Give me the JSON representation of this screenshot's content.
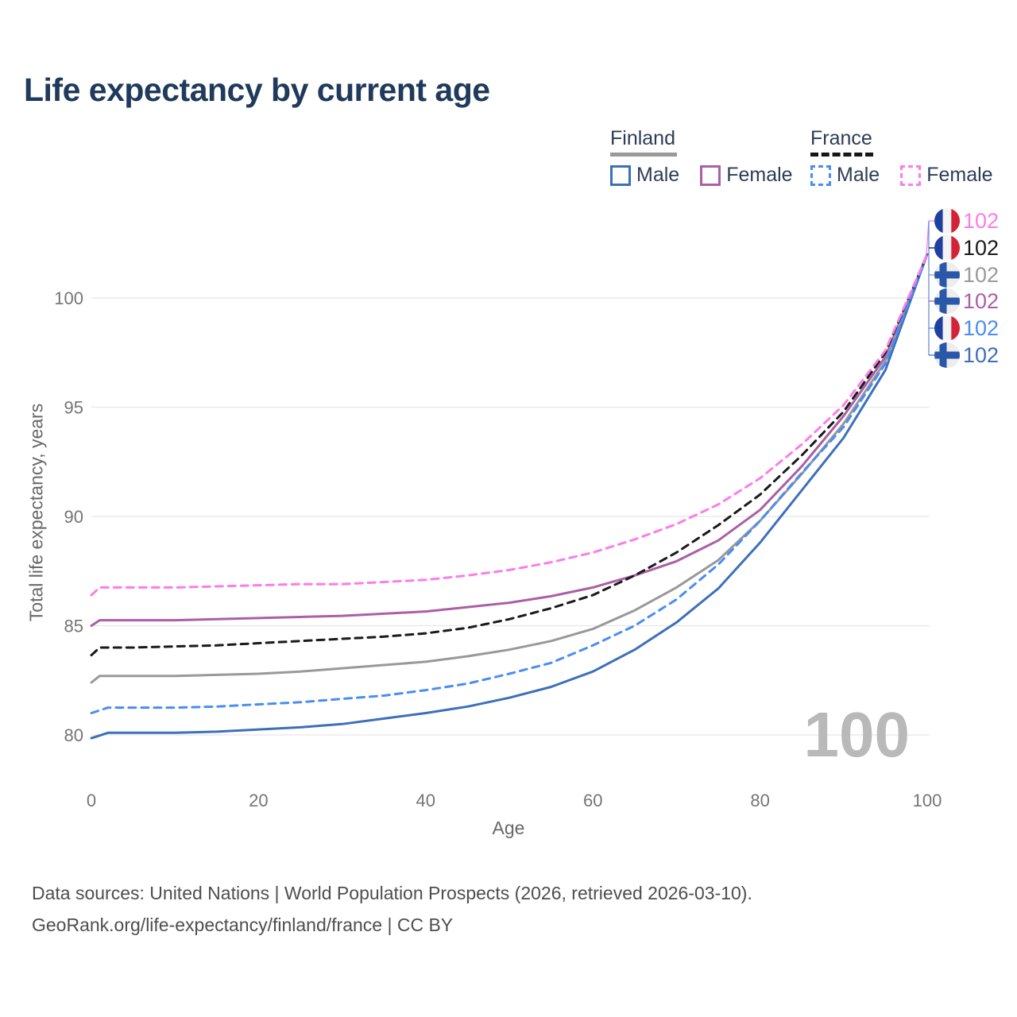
{
  "title": "Life expectancy by current age",
  "legend": {
    "groups": [
      {
        "label": "Finland",
        "line_style": "solid",
        "underline_color": "#999999",
        "items": [
          {
            "label": "Male",
            "color": "#3d6fba",
            "dash": false
          },
          {
            "label": "Female",
            "color": "#ab5fa5",
            "dash": false
          }
        ]
      },
      {
        "label": "France",
        "line_style": "dashed",
        "underline_color": "#161616",
        "items": [
          {
            "label": "Male",
            "color": "#4a8df2",
            "dash": true
          },
          {
            "label": "Female",
            "color": "#fb7de9",
            "dash": true
          }
        ]
      }
    ]
  },
  "chart_data": {
    "type": "line",
    "title": "Life expectancy by current age",
    "xlabel": "Age",
    "ylabel": "Total life expectancy, years",
    "xlim": [
      0,
      100
    ],
    "ylim": [
      79,
      103
    ],
    "xticks": [
      0,
      20,
      40,
      60,
      80,
      100
    ],
    "yticks": [
      80,
      85,
      90,
      95,
      100
    ],
    "grid": true,
    "legend_position": "top-right",
    "watermark_age_counter": "100",
    "colors": {
      "finland_male": "#3d6fba",
      "finland_female": "#ab5fa5",
      "finland_all": "#999999",
      "france_male": "#4a8df2",
      "france_female": "#fb7de9",
      "france_all": "#1a1a1a",
      "grid": "#eaeaea",
      "tick_text": "#757575",
      "watermark": "#b9b9b9"
    },
    "series": [
      {
        "name": "Finland Female",
        "country": "finland",
        "sex": "female",
        "color": "#ab5fa5",
        "dash": false,
        "points": [
          [
            0,
            85.0
          ],
          [
            1,
            85.25
          ],
          [
            5,
            85.25
          ],
          [
            10,
            85.25
          ],
          [
            15,
            85.3
          ],
          [
            20,
            85.35
          ],
          [
            25,
            85.4
          ],
          [
            30,
            85.45
          ],
          [
            35,
            85.55
          ],
          [
            40,
            85.65
          ],
          [
            45,
            85.85
          ],
          [
            50,
            86.05
          ],
          [
            55,
            86.35
          ],
          [
            60,
            86.75
          ],
          [
            65,
            87.3
          ],
          [
            70,
            87.95
          ],
          [
            75,
            88.9
          ],
          [
            80,
            90.3
          ],
          [
            85,
            92.3
          ],
          [
            90,
            94.6
          ],
          [
            95,
            97.3
          ],
          [
            100,
            102
          ]
        ]
      },
      {
        "name": "Finland total",
        "country": "finland",
        "sex": "all",
        "color": "#999999",
        "dash": false,
        "points": [
          [
            0,
            82.4
          ],
          [
            1,
            82.7
          ],
          [
            5,
            82.7
          ],
          [
            10,
            82.7
          ],
          [
            15,
            82.75
          ],
          [
            20,
            82.8
          ],
          [
            25,
            82.9
          ],
          [
            30,
            83.05
          ],
          [
            35,
            83.2
          ],
          [
            40,
            83.35
          ],
          [
            45,
            83.6
          ],
          [
            50,
            83.9
          ],
          [
            55,
            84.3
          ],
          [
            60,
            84.85
          ],
          [
            65,
            85.7
          ],
          [
            70,
            86.75
          ],
          [
            75,
            88.0
          ],
          [
            80,
            89.8
          ],
          [
            85,
            91.95
          ],
          [
            90,
            94.25
          ],
          [
            95,
            97.1
          ],
          [
            100,
            102
          ]
        ]
      },
      {
        "name": "Finland Male",
        "country": "finland",
        "sex": "male",
        "color": "#3d6fba",
        "dash": false,
        "points": [
          [
            0,
            79.85
          ],
          [
            2,
            80.1
          ],
          [
            5,
            80.1
          ],
          [
            10,
            80.1
          ],
          [
            15,
            80.15
          ],
          [
            20,
            80.25
          ],
          [
            25,
            80.35
          ],
          [
            30,
            80.5
          ],
          [
            35,
            80.75
          ],
          [
            40,
            81.0
          ],
          [
            45,
            81.3
          ],
          [
            50,
            81.7
          ],
          [
            55,
            82.2
          ],
          [
            60,
            82.9
          ],
          [
            65,
            83.9
          ],
          [
            70,
            85.15
          ],
          [
            75,
            86.7
          ],
          [
            80,
            88.8
          ],
          [
            85,
            91.2
          ],
          [
            90,
            93.6
          ],
          [
            95,
            96.7
          ],
          [
            100,
            102
          ]
        ]
      },
      {
        "name": "France total",
        "country": "france",
        "sex": "all",
        "color": "#1a1a1a",
        "dash": true,
        "points": [
          [
            0,
            83.65
          ],
          [
            1,
            84.0
          ],
          [
            5,
            84.0
          ],
          [
            10,
            84.05
          ],
          [
            15,
            84.1
          ],
          [
            20,
            84.2
          ],
          [
            25,
            84.3
          ],
          [
            30,
            84.4
          ],
          [
            35,
            84.5
          ],
          [
            40,
            84.65
          ],
          [
            45,
            84.9
          ],
          [
            50,
            85.3
          ],
          [
            55,
            85.8
          ],
          [
            60,
            86.4
          ],
          [
            65,
            87.3
          ],
          [
            70,
            88.35
          ],
          [
            75,
            89.6
          ],
          [
            80,
            91.0
          ],
          [
            85,
            92.8
          ],
          [
            90,
            94.8
          ],
          [
            95,
            97.5
          ],
          [
            100,
            102
          ]
        ]
      },
      {
        "name": "France Male",
        "country": "france",
        "sex": "male",
        "color": "#4a8df2",
        "dash": true,
        "points": [
          [
            0,
            81.0
          ],
          [
            2,
            81.25
          ],
          [
            5,
            81.25
          ],
          [
            10,
            81.25
          ],
          [
            15,
            81.3
          ],
          [
            20,
            81.4
          ],
          [
            25,
            81.5
          ],
          [
            30,
            81.65
          ],
          [
            35,
            81.8
          ],
          [
            40,
            82.05
          ],
          [
            45,
            82.35
          ],
          [
            50,
            82.8
          ],
          [
            55,
            83.3
          ],
          [
            60,
            84.1
          ],
          [
            65,
            85.0
          ],
          [
            70,
            86.2
          ],
          [
            75,
            87.8
          ],
          [
            80,
            89.8
          ],
          [
            85,
            92.0
          ],
          [
            90,
            94.1
          ],
          [
            95,
            97.0
          ],
          [
            100,
            102
          ]
        ]
      },
      {
        "name": "France Female",
        "country": "france",
        "sex": "female",
        "color": "#fb7de9",
        "dash": true,
        "points": [
          [
            0,
            86.4
          ],
          [
            1,
            86.75
          ],
          [
            5,
            86.75
          ],
          [
            10,
            86.75
          ],
          [
            15,
            86.8
          ],
          [
            20,
            86.85
          ],
          [
            25,
            86.9
          ],
          [
            30,
            86.9
          ],
          [
            35,
            87.0
          ],
          [
            40,
            87.1
          ],
          [
            45,
            87.3
          ],
          [
            50,
            87.55
          ],
          [
            55,
            87.9
          ],
          [
            60,
            88.35
          ],
          [
            65,
            88.95
          ],
          [
            70,
            89.65
          ],
          [
            75,
            90.55
          ],
          [
            80,
            91.75
          ],
          [
            85,
            93.3
          ],
          [
            90,
            95.1
          ],
          [
            95,
            97.6
          ],
          [
            100,
            102
          ]
        ]
      }
    ],
    "end_labels": [
      {
        "text": "102",
        "color": "#fb7de9",
        "flag": "france",
        "series": "France Female"
      },
      {
        "text": "102",
        "color": "#1a1a1a",
        "flag": "france",
        "series": "France total"
      },
      {
        "text": "102",
        "color": "#9a9a9a",
        "flag": "finland",
        "series": "Finland total"
      },
      {
        "text": "102",
        "color": "#ab5fa5",
        "flag": "finland",
        "series": "Finland Female"
      },
      {
        "text": "102",
        "color": "#4a8df2",
        "flag": "france",
        "series": "France Male"
      },
      {
        "text": "102",
        "color": "#3d6fba",
        "flag": "finland",
        "series": "Finland Male"
      }
    ],
    "flag_colors": {
      "france_blue": "#20409f",
      "france_white": "#f4f4f4",
      "france_red": "#d32338",
      "finland_white": "#ededed",
      "finland_blue": "#2a57a8"
    }
  },
  "footer": {
    "line1": "Data sources: United Nations | World Population Prospects (2026, retrieved 2026-03-10).",
    "line2": "GeoRank.org/life-expectancy/finland/france | CC BY"
  }
}
